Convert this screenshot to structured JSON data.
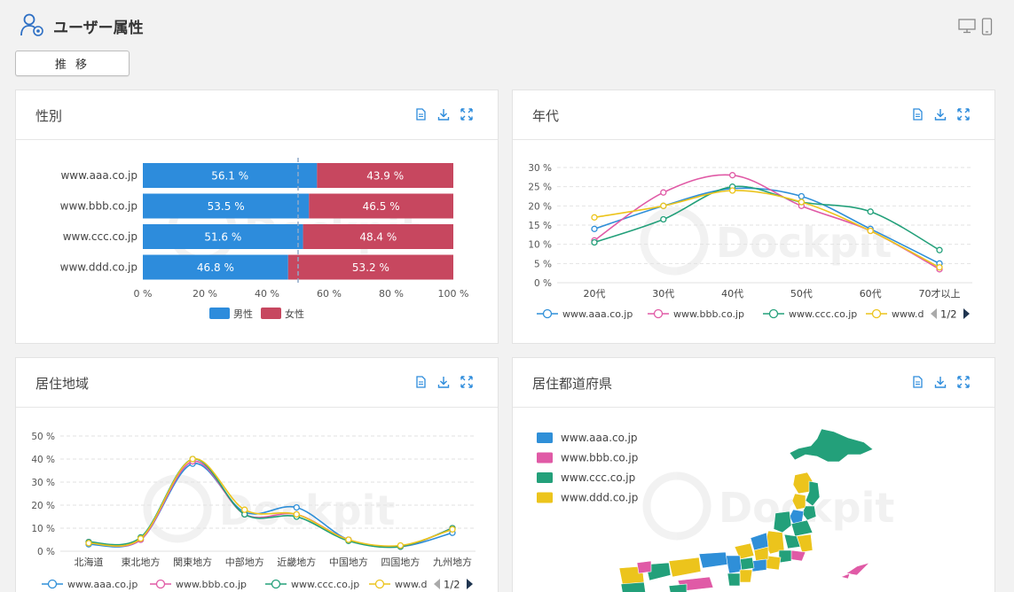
{
  "header": {
    "title": "ユーザー属性",
    "icon": "user-gear-icon"
  },
  "tab_button": {
    "label": "推 移"
  },
  "watermark": {
    "text": "Dockpit"
  },
  "colors": {
    "blue": "#2d8cdc",
    "red": "#c7475f",
    "aaa": "#2f8fd8",
    "bbb": "#e05aa6",
    "ccc": "#23a07a",
    "ddd": "#ecc41c"
  },
  "panels": {
    "gender": {
      "title": "性別",
      "chart_data": {
        "type": "bar",
        "orientation": "horizontal-stacked-100",
        "categories": [
          "www.aaa.co.jp",
          "www.bbb.co.jp",
          "www.ccc.co.jp",
          "www.ddd.co.jp"
        ],
        "series": [
          {
            "name": "男性",
            "values": [
              56.1,
              53.5,
              51.6,
              46.8
            ],
            "labels": [
              "56.1 %",
              "53.5 %",
              "51.6 %",
              "46.8 %"
            ]
          },
          {
            "name": "女性",
            "values": [
              43.9,
              46.5,
              48.4,
              53.2
            ],
            "labels": [
              "43.9 %",
              "46.5 %",
              "48.4 %",
              "53.2 %"
            ]
          }
        ],
        "xticks": [
          "0 %",
          "20 %",
          "40 %",
          "60 %",
          "80 %",
          "100 %"
        ],
        "xlim": [
          0,
          100
        ],
        "reference_line": 50,
        "legend": "bottom"
      }
    },
    "age": {
      "title": "年代",
      "chart_data": {
        "type": "line",
        "categories": [
          "20代",
          "30代",
          "40代",
          "50代",
          "60代",
          "70才以上"
        ],
        "series": [
          {
            "name": "www.aaa.co.jp",
            "values": [
              14,
              20,
              24.5,
              22.5,
              14,
              5
            ]
          },
          {
            "name": "www.bbb.co.jp",
            "values": [
              11,
              23.5,
              28,
              20,
              13.5,
              3.5
            ]
          },
          {
            "name": "www.ccc.co.jp",
            "values": [
              10.5,
              16.5,
              25,
              21,
              18.5,
              8.5
            ]
          },
          {
            "name": "www.d",
            "values": [
              17,
              20,
              24,
              21,
              13.5,
              4
            ]
          }
        ],
        "yticks": [
          "30 %",
          "25 %",
          "20 %",
          "15 %",
          "10 %",
          "5 %",
          "0 %"
        ],
        "ylim": [
          0,
          30
        ],
        "legend": "bottom",
        "legend_page": "1/2"
      }
    },
    "region": {
      "title": "居住地域",
      "chart_data": {
        "type": "line",
        "categories": [
          "北海道",
          "東北地方",
          "関東地方",
          "中部地方",
          "近畿地方",
          "中国地方",
          "四国地方",
          "九州地方"
        ],
        "series": [
          {
            "name": "www.aaa.co.jp",
            "values": [
              3,
              5,
              38,
              17,
              19,
              5,
              2,
              8
            ]
          },
          {
            "name": "www.bbb.co.jp",
            "values": [
              4,
              5,
              39,
              16,
              16,
              5,
              2,
              10
            ]
          },
          {
            "name": "www.ccc.co.jp",
            "values": [
              4,
              6,
              40,
              16,
              15,
              4.5,
              2,
              10
            ]
          },
          {
            "name": "www.d",
            "values": [
              3.5,
              5.5,
              40,
              18,
              16,
              5,
              2.5,
              9.5
            ]
          }
        ],
        "yticks": [
          "50 %",
          "40 %",
          "30 %",
          "20 %",
          "10 %",
          "0 %"
        ],
        "ylim": [
          0,
          50
        ],
        "legend": "bottom",
        "legend_page": "1/2"
      }
    },
    "prefecture": {
      "title": "居住都道府県",
      "legend": [
        {
          "name": "www.aaa.co.jp",
          "color": "#2f8fd8"
        },
        {
          "name": "www.bbb.co.jp",
          "color": "#e05aa6"
        },
        {
          "name": "www.ccc.co.jp",
          "color": "#23a07a"
        },
        {
          "name": "www.ddd.co.jp",
          "color": "#ecc41c"
        }
      ]
    }
  },
  "tools": [
    "document-icon",
    "download-icon",
    "expand-icon"
  ]
}
